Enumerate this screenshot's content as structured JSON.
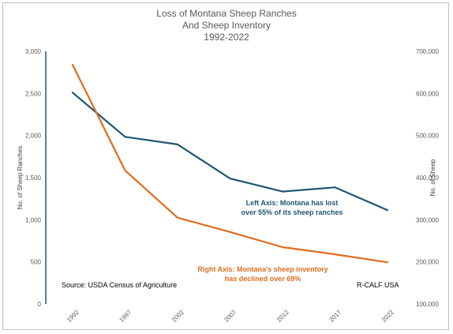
{
  "chart_data": {
    "type": "line",
    "title_lines": [
      "Loss of Montana Sheep Ranches",
      "And Sheep Inventory",
      "1992-2022"
    ],
    "categories": [
      "1992",
      "1997",
      "2002",
      "2007",
      "2012",
      "2017",
      "2022"
    ],
    "series": [
      {
        "axis": "left",
        "color": "#1f5672",
        "values": [
          2510,
          1985,
          1895,
          1490,
          1335,
          1385,
          1115
        ]
      },
      {
        "axis": "right",
        "color": "#e06c1d",
        "values": [
          668000,
          417000,
          305000,
          271000,
          235000,
          218000,
          199000
        ]
      }
    ],
    "ylabel_left": "No. of Sheep Ranches",
    "ylabel_right": "No. of Sheep",
    "ylim_left": [
      0,
      3000
    ],
    "ylim_right": [
      100000,
      700000
    ],
    "yticks_left": [
      "0",
      "500",
      "1,000",
      "1,500",
      "2,000",
      "2,500",
      "3,000"
    ],
    "yticks_right": [
      "100,000",
      "200,000",
      "300,000",
      "400,000",
      "500,000",
      "600,000",
      "700,000"
    ],
    "grid": false,
    "annotations": {
      "left_axis": [
        "Left Axis: Montana has lost",
        "over 55% of its sheep ranches"
      ],
      "right_axis": [
        "Right Axis: Montana's sheep inventory",
        "has declined over 69%"
      ],
      "source": "Source:  USDA Census of Agriculture",
      "credit": "R-CALF USA"
    }
  }
}
